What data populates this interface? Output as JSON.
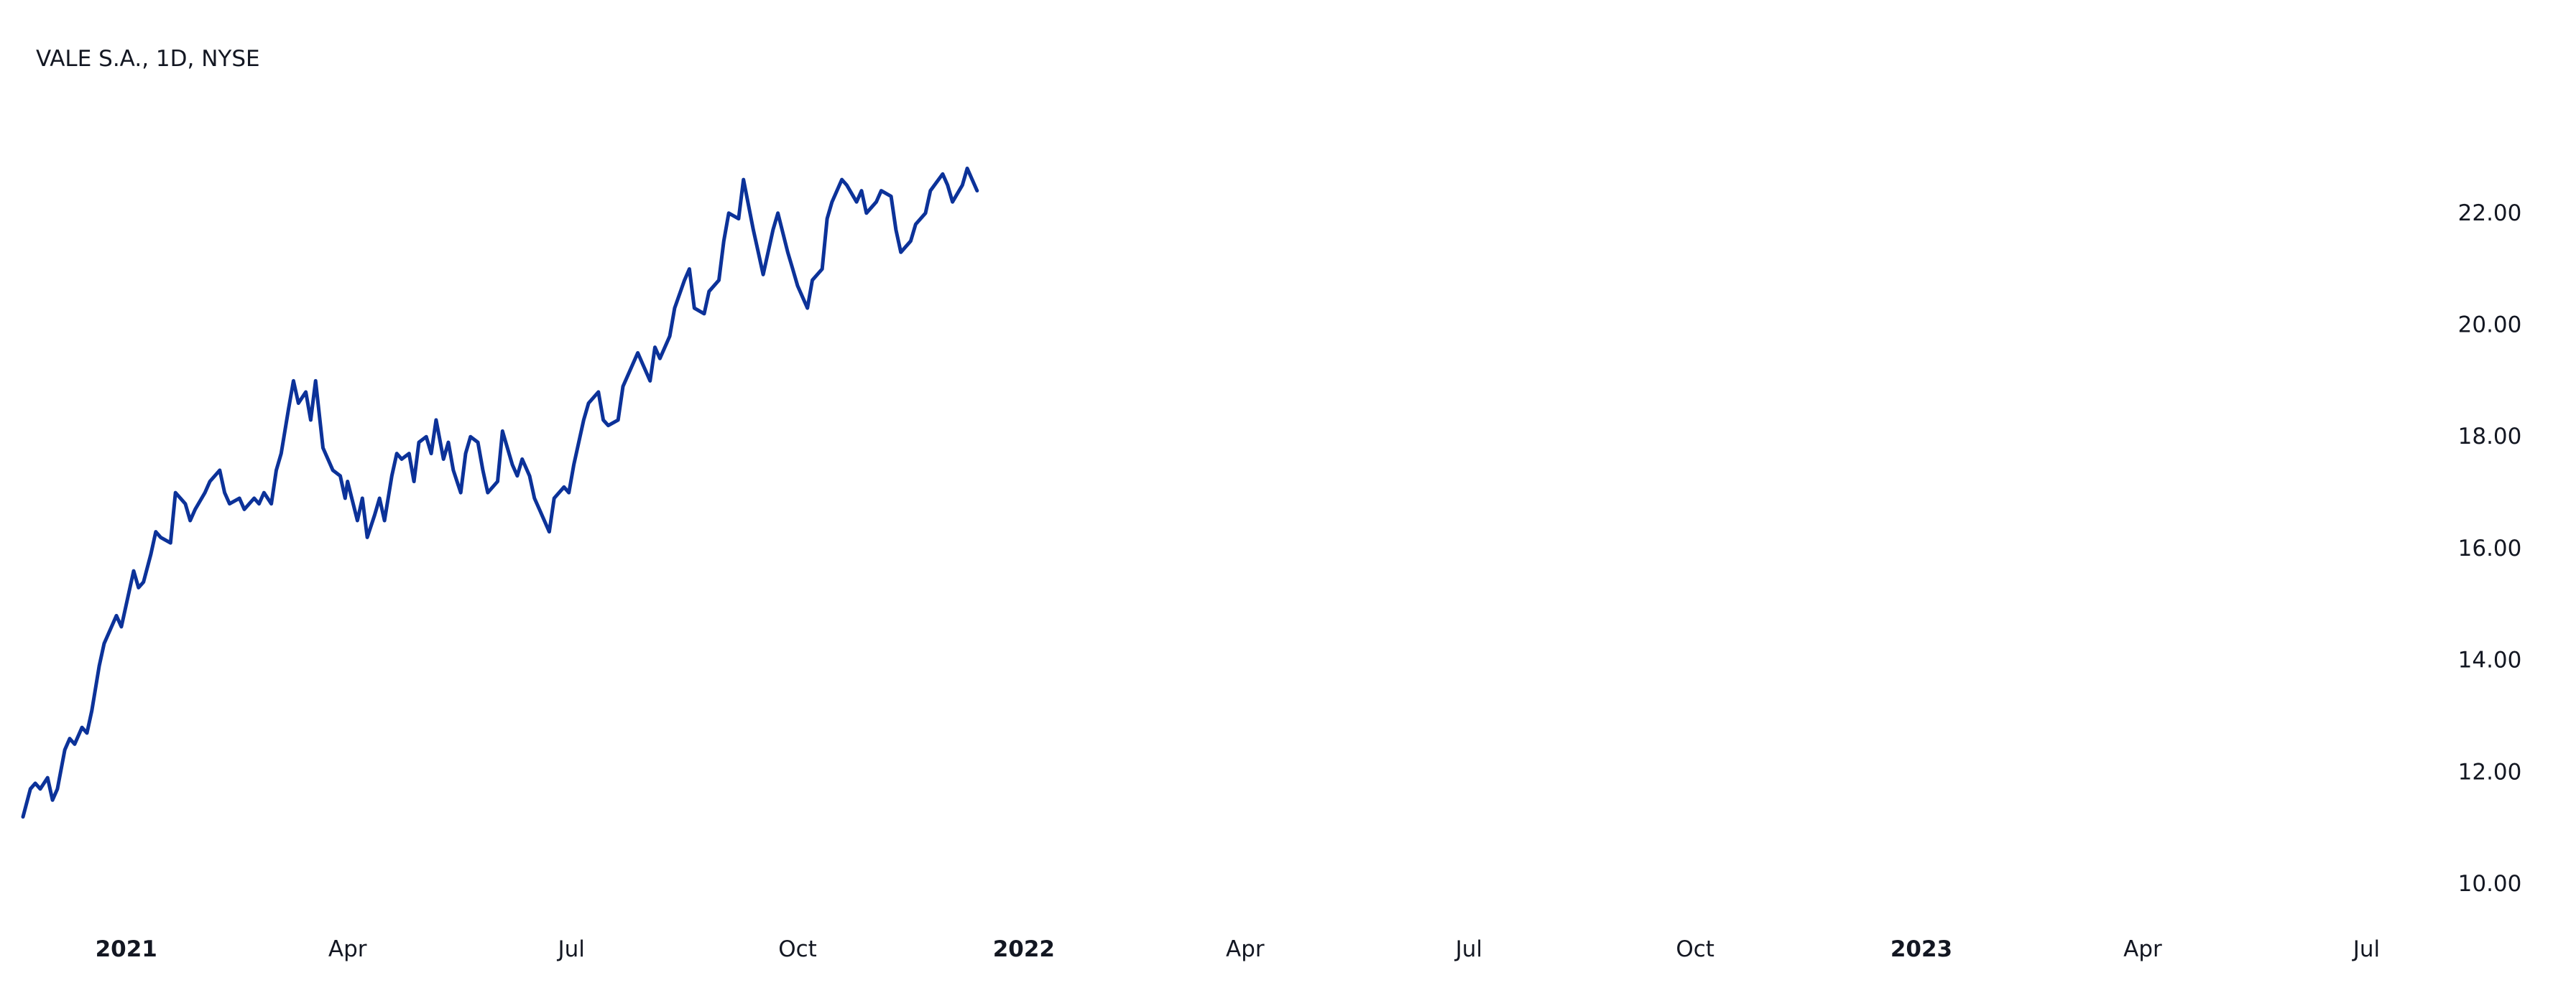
{
  "chart_title": "VALE S.A., 1D, NYSE",
  "chart_data": {
    "type": "line",
    "title": "VALE S.A., 1D, NYSE",
    "xlabel": "",
    "ylabel": "",
    "line_color": "#0c3299",
    "background_color": "#ffffff",
    "grid": false,
    "legend": "none",
    "xlim": [
      "2020-11-20",
      "2023-07-19"
    ],
    "ylim": [
      9.5,
      23.5
    ],
    "y_ticks": [
      {
        "value": 10,
        "label": "10.00"
      },
      {
        "value": 12,
        "label": "12.00"
      },
      {
        "value": 14,
        "label": "14.00"
      },
      {
        "value": 16,
        "label": "16.00"
      },
      {
        "value": 18,
        "label": "18.00"
      },
      {
        "value": 20,
        "label": "20.00"
      },
      {
        "value": 22,
        "label": "22.00"
      }
    ],
    "x_ticks": [
      {
        "date": "2021-01-01",
        "label": "2021",
        "bold": true
      },
      {
        "date": "2021-04-01",
        "label": "Apr",
        "bold": false
      },
      {
        "date": "2021-07-01",
        "label": "Jul",
        "bold": false
      },
      {
        "date": "2021-10-01",
        "label": "Oct",
        "bold": false
      },
      {
        "date": "2022-01-01",
        "label": "2022",
        "bold": true
      },
      {
        "date": "2022-04-01",
        "label": "Apr",
        "bold": false
      },
      {
        "date": "2022-07-01",
        "label": "Jul",
        "bold": false
      },
      {
        "date": "2022-10-01",
        "label": "Oct",
        "bold": false
      },
      {
        "date": "2023-01-01",
        "label": "2023",
        "bold": true
      },
      {
        "date": "2023-04-01",
        "label": "Apr",
        "bold": false
      },
      {
        "date": "2023-07-01",
        "label": "Jul",
        "bold": false
      }
    ],
    "series": [
      {
        "values": [
          [
            "2020-11-20",
            11.2
          ],
          [
            "2020-11-23",
            11.7
          ],
          [
            "2020-11-25",
            11.8
          ],
          [
            "2020-11-27",
            11.7
          ],
          [
            "2020-11-30",
            11.9
          ],
          [
            "2020-12-02",
            11.5
          ],
          [
            "2020-12-04",
            11.7
          ],
          [
            "2020-12-07",
            12.4
          ],
          [
            "2020-12-09",
            12.6
          ],
          [
            "2020-12-11",
            12.5
          ],
          [
            "2020-12-14",
            12.8
          ],
          [
            "2020-12-16",
            12.7
          ],
          [
            "2020-12-18",
            13.1
          ],
          [
            "2020-12-21",
            13.9
          ],
          [
            "2020-12-23",
            14.3
          ],
          [
            "2020-12-28",
            14.8
          ],
          [
            "2020-12-30",
            14.6
          ],
          [
            "2021-01-04",
            15.6
          ],
          [
            "2021-01-06",
            15.3
          ],
          [
            "2021-01-08",
            15.4
          ],
          [
            "2021-01-11",
            15.9
          ],
          [
            "2021-01-13",
            16.3
          ],
          [
            "2021-01-15",
            16.2
          ],
          [
            "2021-01-19",
            16.1
          ],
          [
            "2021-01-21",
            17.0
          ],
          [
            "2021-01-25",
            16.8
          ],
          [
            "2021-01-27",
            16.5
          ],
          [
            "2021-01-29",
            16.7
          ],
          [
            "2021-02-02",
            17.0
          ],
          [
            "2021-02-04",
            17.2
          ],
          [
            "2021-02-08",
            17.4
          ],
          [
            "2021-02-10",
            17.0
          ],
          [
            "2021-02-12",
            16.8
          ],
          [
            "2021-02-16",
            16.9
          ],
          [
            "2021-02-18",
            16.7
          ],
          [
            "2021-02-22",
            16.9
          ],
          [
            "2021-02-24",
            16.8
          ],
          [
            "2021-02-26",
            17.0
          ],
          [
            "2021-03-01",
            16.8
          ],
          [
            "2021-03-03",
            17.4
          ],
          [
            "2021-03-05",
            17.7
          ],
          [
            "2021-03-08",
            18.5
          ],
          [
            "2021-03-10",
            19.0
          ],
          [
            "2021-03-12",
            18.6
          ],
          [
            "2021-03-15",
            18.8
          ],
          [
            "2021-03-17",
            18.3
          ],
          [
            "2021-03-19",
            19.0
          ],
          [
            "2021-03-22",
            17.8
          ],
          [
            "2021-03-24",
            17.6
          ],
          [
            "2021-03-26",
            17.4
          ],
          [
            "2021-03-29",
            17.3
          ],
          [
            "2021-03-31",
            16.9
          ],
          [
            "2021-04-01",
            17.2
          ],
          [
            "2021-04-05",
            16.5
          ],
          [
            "2021-04-07",
            16.9
          ],
          [
            "2021-04-09",
            16.2
          ],
          [
            "2021-04-12",
            16.6
          ],
          [
            "2021-04-14",
            16.9
          ],
          [
            "2021-04-16",
            16.5
          ],
          [
            "2021-04-19",
            17.3
          ],
          [
            "2021-04-21",
            17.7
          ],
          [
            "2021-04-23",
            17.6
          ],
          [
            "2021-04-26",
            17.7
          ],
          [
            "2021-04-28",
            17.2
          ],
          [
            "2021-04-30",
            17.9
          ],
          [
            "2021-05-03",
            18.0
          ],
          [
            "2021-05-05",
            17.7
          ],
          [
            "2021-05-07",
            18.3
          ],
          [
            "2021-05-10",
            17.6
          ],
          [
            "2021-05-12",
            17.9
          ],
          [
            "2021-05-14",
            17.4
          ],
          [
            "2021-05-17",
            17.0
          ],
          [
            "2021-05-19",
            17.7
          ],
          [
            "2021-05-21",
            18.0
          ],
          [
            "2021-05-24",
            17.9
          ],
          [
            "2021-05-26",
            17.4
          ],
          [
            "2021-05-28",
            17.0
          ],
          [
            "2021-06-01",
            17.2
          ],
          [
            "2021-06-03",
            18.1
          ],
          [
            "2021-06-07",
            17.5
          ],
          [
            "2021-06-09",
            17.3
          ],
          [
            "2021-06-11",
            17.6
          ],
          [
            "2021-06-14",
            17.3
          ],
          [
            "2021-06-16",
            16.9
          ],
          [
            "2021-06-18",
            16.7
          ],
          [
            "2021-06-22",
            16.3
          ],
          [
            "2021-06-24",
            16.9
          ],
          [
            "2021-06-28",
            17.1
          ],
          [
            "2021-06-30",
            17.0
          ],
          [
            "2021-07-02",
            17.5
          ],
          [
            "2021-07-06",
            18.3
          ],
          [
            "2021-07-08",
            18.6
          ],
          [
            "2021-07-12",
            18.8
          ],
          [
            "2021-07-14",
            18.3
          ],
          [
            "2021-07-16",
            18.2
          ],
          [
            "2021-07-20",
            18.3
          ],
          [
            "2021-07-22",
            18.9
          ],
          [
            "2021-07-26",
            19.3
          ],
          [
            "2021-07-28",
            19.5
          ],
          [
            "2021-07-30",
            19.3
          ],
          [
            "2021-08-02",
            19.0
          ],
          [
            "2021-08-04",
            19.6
          ],
          [
            "2021-08-06",
            19.4
          ],
          [
            "2021-08-10",
            19.8
          ],
          [
            "2021-08-12",
            20.3
          ],
          [
            "2021-08-16",
            20.8
          ],
          [
            "2021-08-18",
            21.0
          ],
          [
            "2021-08-20",
            20.3
          ],
          [
            "2021-08-24",
            20.2
          ],
          [
            "2021-08-26",
            20.6
          ],
          [
            "2021-08-30",
            20.8
          ],
          [
            "2021-09-01",
            21.5
          ],
          [
            "2021-09-03",
            22.0
          ],
          [
            "2021-09-07",
            21.9
          ],
          [
            "2021-09-09",
            22.6
          ],
          [
            "2021-09-13",
            21.7
          ],
          [
            "2021-09-15",
            21.3
          ],
          [
            "2021-09-17",
            20.9
          ],
          [
            "2021-09-21",
            21.7
          ],
          [
            "2021-09-23",
            22.0
          ],
          [
            "2021-09-27",
            21.3
          ],
          [
            "2021-09-29",
            21.0
          ],
          [
            "2021-10-01",
            20.7
          ],
          [
            "2021-10-05",
            20.3
          ],
          [
            "2021-10-07",
            20.8
          ],
          [
            "2021-10-11",
            21.0
          ],
          [
            "2021-10-13",
            21.9
          ],
          [
            "2021-10-15",
            22.2
          ],
          [
            "2021-10-19",
            22.6
          ],
          [
            "2021-10-21",
            22.5
          ],
          [
            "2021-10-25",
            22.2
          ],
          [
            "2021-10-27",
            22.4
          ],
          [
            "2021-10-29",
            22.0
          ],
          [
            "2021-11-02",
            22.2
          ],
          [
            "2021-11-04",
            22.4
          ],
          [
            "2021-11-08",
            22.3
          ],
          [
            "2021-11-10",
            21.7
          ],
          [
            "2021-11-12",
            21.3
          ],
          [
            "2021-11-16",
            21.5
          ],
          [
            "2021-11-18",
            21.8
          ],
          [
            "2021-11-22",
            22.0
          ],
          [
            "2021-11-24",
            22.4
          ],
          [
            "2021-11-29",
            22.7
          ],
          [
            "2021-12-01",
            22.5
          ],
          [
            "2021-12-03",
            22.2
          ],
          [
            "2021-12-07",
            22.5
          ],
          [
            "2021-12-09",
            22.8
          ],
          [
            "2021-12-13",
            22.4
          ]
        ]
      }
    ]
  }
}
